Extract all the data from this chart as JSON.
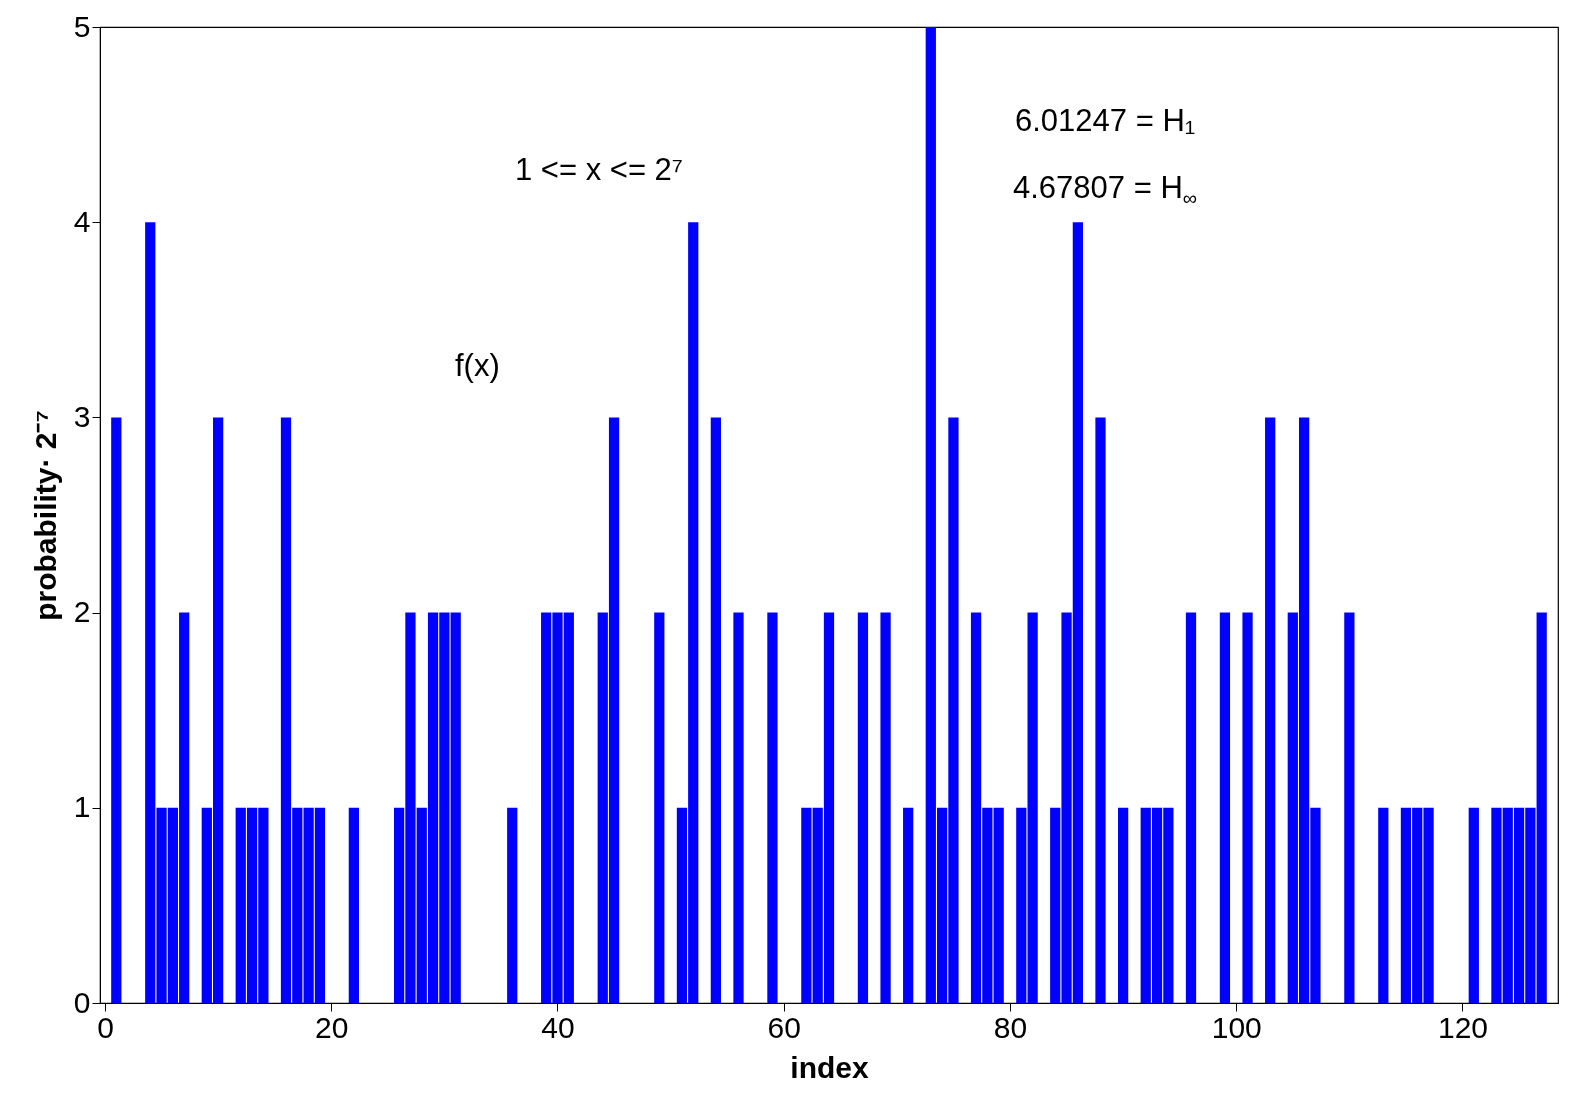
{
  "chart_data": {
    "type": "bar",
    "xlabel": "index",
    "ylabel": "probability· 2⁻⁷",
    "x": [
      1,
      4,
      5,
      6,
      7,
      9,
      10,
      12,
      13,
      14,
      16,
      17,
      18,
      19,
      22,
      26,
      27,
      28,
      29,
      30,
      31,
      36,
      39,
      40,
      41,
      44,
      45,
      49,
      51,
      52,
      54,
      56,
      59,
      62,
      63,
      64,
      67,
      69,
      71,
      73,
      74,
      75,
      77,
      78,
      79,
      81,
      82,
      84,
      85,
      86,
      88,
      90,
      92,
      93,
      94,
      96,
      99,
      101,
      103,
      105,
      106,
      107,
      110,
      113,
      115,
      116,
      117,
      121,
      123,
      124,
      125,
      126,
      127
    ],
    "values": [
      3,
      4,
      1,
      1,
      2,
      1,
      3,
      1,
      1,
      1,
      3,
      1,
      1,
      1,
      1,
      1,
      2,
      1,
      2,
      2,
      2,
      1,
      2,
      2,
      2,
      2,
      3,
      2,
      1,
      4,
      3,
      2,
      2,
      1,
      1,
      2,
      2,
      2,
      1,
      5,
      1,
      3,
      2,
      1,
      1,
      1,
      2,
      1,
      2,
      4,
      3,
      1,
      1,
      1,
      1,
      2,
      2,
      2,
      3,
      2,
      3,
      1,
      2,
      1,
      1,
      1,
      1,
      1,
      1,
      1,
      1,
      1,
      2
    ],
    "color": "#0000ff",
    "xlim": [
      0,
      128
    ],
    "xticks": [
      0,
      20,
      40,
      60,
      80,
      100,
      120
    ],
    "ylim": [
      0,
      5
    ],
    "yticks": [
      0,
      1,
      2,
      3,
      4,
      5
    ],
    "grid": false,
    "annotations": [
      "1 <= x <= 2⁷",
      "f(x)",
      "6.01247 = H₁",
      "4.67807 = H$_{∞}$"
    ]
  }
}
